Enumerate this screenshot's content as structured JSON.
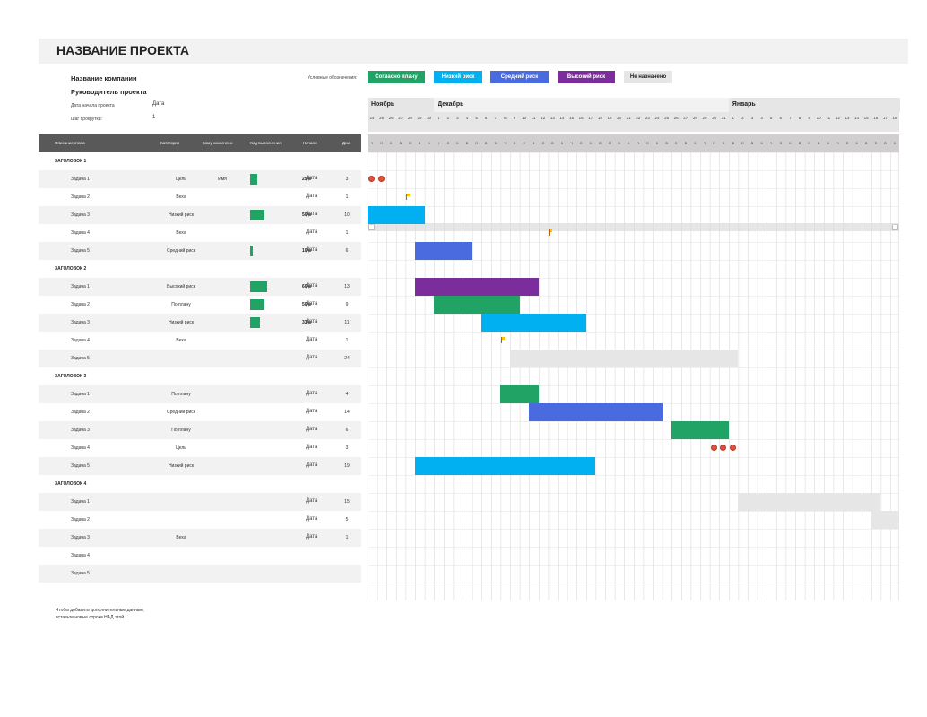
{
  "project_title": "НАЗВАНИЕ ПРОЕКТА",
  "company_name": "Название компании",
  "project_manager": "Руководитель проекта",
  "start_label": "Дата начала проекта",
  "start_value": "Дата",
  "scroll_label": "Шаг прокрутки:",
  "scroll_value": "1",
  "legend": {
    "label": "Условные обозначения:",
    "items": [
      {
        "label": "Согласно плану",
        "color": "#21a366"
      },
      {
        "label": "Низкий риск",
        "color": "#00b0f0"
      },
      {
        "label": "Средний риск",
        "color": "#4a6be0"
      },
      {
        "label": "Высокий риск",
        "color": "#7b2d9b"
      },
      {
        "label": "Не назначено",
        "color": "#e7e6e6"
      }
    ]
  },
  "table_headers": {
    "description": "Описание этапа",
    "category": "Категория",
    "assigned": "Кому назначено",
    "progress": "Ход выполнения",
    "start": "Начало",
    "days": "Дни"
  },
  "rows": [
    {
      "type": "section",
      "title": "ЗАГОЛОВОК 1"
    },
    {
      "type": "task",
      "name": "Задача 1",
      "category": "Цель",
      "assigned": "Имя",
      "progress": 25,
      "progress_label": "25%",
      "start": "Дата",
      "days": "3"
    },
    {
      "type": "task",
      "name": "Задача 2",
      "category": "Веха",
      "assigned": "",
      "progress": null,
      "progress_label": "",
      "start": "Дата",
      "days": "1"
    },
    {
      "type": "task",
      "name": "Задача 3",
      "category": "Низкий риск",
      "assigned": "",
      "progress": 50,
      "progress_label": "50%",
      "start": "Дата",
      "days": "10"
    },
    {
      "type": "task",
      "name": "Задача 4",
      "category": "Веха",
      "assigned": "",
      "progress": null,
      "progress_label": "",
      "start": "Дата",
      "days": "1"
    },
    {
      "type": "task",
      "name": "Задача 5",
      "category": "Средний риск",
      "assigned": "",
      "progress": 10,
      "progress_label": "10%",
      "start": "Дата",
      "days": "6"
    },
    {
      "type": "section",
      "title": "ЗАГОЛОВОК 2"
    },
    {
      "type": "task",
      "name": "Задача 1",
      "category": "Высокий риск",
      "assigned": "",
      "progress": 60,
      "progress_label": "60%",
      "start": "Дата",
      "days": "13"
    },
    {
      "type": "task",
      "name": "Задача 2",
      "category": "По плану",
      "assigned": "",
      "progress": 50,
      "progress_label": "50%",
      "start": "Дата",
      "days": "9"
    },
    {
      "type": "task",
      "name": "Задача 3",
      "category": "Низкий риск",
      "assigned": "",
      "progress": 33,
      "progress_label": "33%",
      "start": "Дата",
      "days": "11"
    },
    {
      "type": "task",
      "name": "Задача 4",
      "category": "Веха",
      "assigned": "",
      "progress": null,
      "progress_label": "",
      "start": "Дата",
      "days": "1"
    },
    {
      "type": "task",
      "name": "Задача 5",
      "category": "",
      "assigned": "",
      "progress": null,
      "progress_label": "",
      "start": "Дата",
      "days": "24"
    },
    {
      "type": "section",
      "title": "ЗАГОЛОВОК 3"
    },
    {
      "type": "task",
      "name": "Задача 1",
      "category": "По плану",
      "assigned": "",
      "progress": null,
      "progress_label": "",
      "start": "Дата",
      "days": "4"
    },
    {
      "type": "task",
      "name": "Задача 2",
      "category": "Средний риск",
      "assigned": "",
      "progress": null,
      "progress_label": "",
      "start": "Дата",
      "days": "14"
    },
    {
      "type": "task",
      "name": "Задача 3",
      "category": "По плану",
      "assigned": "",
      "progress": null,
      "progress_label": "",
      "start": "Дата",
      "days": "6"
    },
    {
      "type": "task",
      "name": "Задача 4",
      "category": "Цель",
      "assigned": "",
      "progress": null,
      "progress_label": "",
      "start": "Дата",
      "days": "3"
    },
    {
      "type": "task",
      "name": "Задача 5",
      "category": "Низкий риск",
      "assigned": "",
      "progress": null,
      "progress_label": "",
      "start": "Дата",
      "days": "19"
    },
    {
      "type": "section",
      "title": "ЗАГОЛОВОК 4"
    },
    {
      "type": "task",
      "name": "Задача 1",
      "category": "",
      "assigned": "",
      "progress": null,
      "progress_label": "",
      "start": "Дата",
      "days": "15"
    },
    {
      "type": "task",
      "name": "Задача 2",
      "category": "",
      "assigned": "",
      "progress": null,
      "progress_label": "",
      "start": "Дата",
      "days": "5"
    },
    {
      "type": "task",
      "name": "Задача 3",
      "category": "Веха",
      "assigned": "",
      "progress": null,
      "progress_label": "",
      "start": "Дата",
      "days": "1"
    },
    {
      "type": "task",
      "name": "Задача 4",
      "category": "",
      "assigned": "",
      "progress": null,
      "progress_label": "",
      "start": "",
      "days": ""
    },
    {
      "type": "task",
      "name": "Задача 5",
      "category": "",
      "assigned": "",
      "progress": null,
      "progress_label": "",
      "start": "",
      "days": ""
    },
    {
      "type": "blank"
    }
  ],
  "note_line1": "Чтобы добавить дополнительные данные,",
  "note_line2": "вставьте новые строки НАД этой.",
  "gantt": {
    "months": [
      {
        "label": "Ноябрь",
        "days": 7,
        "color": "#e7e6e6"
      },
      {
        "label": "Декабрь",
        "days": 31,
        "color": "#f2f2f2"
      },
      {
        "label": "Январь",
        "days": 18,
        "color": "#e7e6e6"
      }
    ],
    "day_numbers": [
      "24",
      "25",
      "26",
      "27",
      "28",
      "29",
      "30",
      "1",
      "2",
      "3",
      "4",
      "5",
      "6",
      "7",
      "8",
      "9",
      "10",
      "11",
      "12",
      "13",
      "14",
      "15",
      "16",
      "17",
      "18",
      "19",
      "20",
      "21",
      "22",
      "23",
      "24",
      "25",
      "26",
      "27",
      "28",
      "29",
      "30",
      "31",
      "1",
      "2",
      "3",
      "4",
      "5",
      "6",
      "7",
      "8",
      "9",
      "10",
      "11",
      "12",
      "13",
      "14",
      "15",
      "16",
      "17",
      "18"
    ],
    "weekdays": [
      "ч",
      "п",
      "с",
      "в",
      "п",
      "в",
      "с",
      "ч",
      "п",
      "с",
      "в",
      "п",
      "в",
      "с",
      "ч",
      "п",
      "с",
      "в",
      "п",
      "в",
      "с",
      "ч",
      "п",
      "с",
      "в",
      "п",
      "в",
      "с",
      "ч",
      "п",
      "с",
      "в",
      "п",
      "в",
      "с",
      "ч",
      "п",
      "с",
      "в",
      "п",
      "в",
      "с",
      "ч",
      "п",
      "с",
      "в",
      "п",
      "в",
      "с",
      "ч",
      "п",
      "с",
      "в",
      "п",
      "в",
      "с"
    ],
    "bars": [
      {
        "row": 3,
        "start": 0,
        "length": 6,
        "color": "#00b0f0"
      },
      {
        "row": 5,
        "start": 5,
        "length": 6,
        "color": "#4a6be0"
      },
      {
        "row": 7,
        "start": 5,
        "length": 13,
        "color": "#7b2d9b"
      },
      {
        "row": 8,
        "start": 7,
        "length": 9,
        "color": "#21a366"
      },
      {
        "row": 9,
        "start": 12,
        "length": 11,
        "color": "#00b0f0"
      },
      {
        "row": 11,
        "start": 15,
        "length": 24,
        "color": "#e7e6e6"
      },
      {
        "row": 13,
        "start": 14,
        "length": 4,
        "color": "#21a366"
      },
      {
        "row": 14,
        "start": 17,
        "length": 14,
        "color": "#4a6be0"
      },
      {
        "row": 15,
        "start": 32,
        "length": 6,
        "color": "#21a366"
      },
      {
        "row": 17,
        "start": 5,
        "length": 19,
        "color": "#00b0f0"
      },
      {
        "row": 19,
        "start": 39,
        "length": 15,
        "color": "#e7e6e6"
      },
      {
        "row": 20,
        "start": 53,
        "length": 3,
        "color": "#e7e6e6"
      }
    ],
    "milestones": [
      {
        "row": 1,
        "day": 0,
        "kind": "target"
      },
      {
        "row": 1,
        "day": 1,
        "kind": "target"
      },
      {
        "row": 2,
        "day": 4,
        "kind": "flag"
      },
      {
        "row": 4,
        "day": 19,
        "kind": "flag"
      },
      {
        "row": 10,
        "day": 14,
        "kind": "flag"
      },
      {
        "row": 16,
        "day": 36,
        "kind": "target"
      },
      {
        "row": 16,
        "day": 37,
        "kind": "target"
      },
      {
        "row": 16,
        "day": 38,
        "kind": "target"
      }
    ]
  }
}
